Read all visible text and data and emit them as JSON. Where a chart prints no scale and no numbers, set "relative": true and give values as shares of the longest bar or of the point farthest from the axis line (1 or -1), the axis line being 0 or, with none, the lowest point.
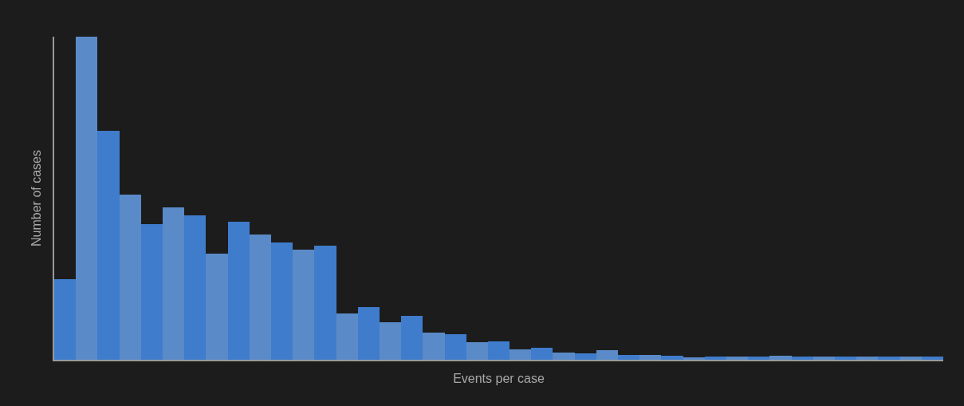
{
  "chart_data": {
    "type": "bar",
    "relative": true,
    "xlabel": "Events per case",
    "ylabel": "Number of cases",
    "categories": [
      null,
      null,
      null,
      null,
      null,
      null,
      null,
      null,
      null,
      null,
      null,
      null,
      null,
      null,
      null,
      null,
      null,
      null,
      null,
      null,
      null,
      null,
      null,
      null,
      null,
      null,
      null,
      null,
      null,
      null,
      null,
      null,
      null,
      null,
      null,
      null,
      null,
      null,
      null,
      null,
      null
    ],
    "values": [
      0.25,
      1.0,
      0.708,
      0.511,
      0.42,
      0.472,
      0.446,
      0.328,
      0.428,
      0.387,
      0.363,
      0.341,
      0.353,
      0.143,
      0.164,
      0.115,
      0.135,
      0.085,
      0.079,
      0.054,
      0.058,
      0.032,
      0.036,
      0.023,
      0.019,
      0.029,
      0.014,
      0.014,
      0.013,
      0.008,
      0.01,
      0.01,
      0.01,
      0.013,
      0.009,
      0.011,
      0.011,
      0.009,
      0.009,
      0.009,
      0.011
    ],
    "colors": [
      "#3f7ccc",
      "#5a8bc8",
      "#3f7ccc",
      "#5a8bc8",
      "#3f7ccc",
      "#5a8bc8",
      "#3f7ccc",
      "#5a8bc8",
      "#3f7ccc",
      "#5a8bc8",
      "#3f7ccc",
      "#5a8bc8",
      "#3f7ccc",
      "#5a8bc8",
      "#3f7ccc",
      "#5a8bc8",
      "#3f7ccc",
      "#5a8bc8",
      "#3f7ccc",
      "#5a8bc8",
      "#3f7ccc",
      "#5a8bc8",
      "#3f7ccc",
      "#5a8bc8",
      "#3f7ccc",
      "#5a8bc8",
      "#3f7ccc",
      "#5a8bc8",
      "#3f7ccc",
      "#5a8bc8",
      "#3f7ccc",
      "#5a8bc8",
      "#3f7ccc",
      "#5a8bc8",
      "#3f7ccc",
      "#5a8bc8",
      "#3f7ccc",
      "#5a8bc8",
      "#3f7ccc",
      "#5a8bc8",
      "#3f7ccc"
    ]
  }
}
